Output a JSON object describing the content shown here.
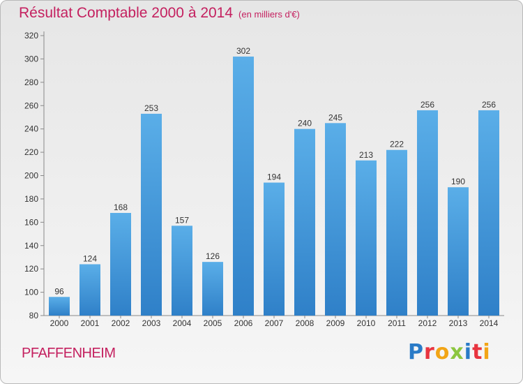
{
  "title": "Résultat Comptable 2000 à 2014",
  "unit": "(en milliers d'€)",
  "place": "PFAFFENHEIM",
  "logo": {
    "text": "Proxiti",
    "letters": [
      {
        "ch": "P",
        "color": "#2a7bc7"
      },
      {
        "ch": "r",
        "color": "#e8343f"
      },
      {
        "ch": "o",
        "color": "#f2a516"
      },
      {
        "ch": "x",
        "color": "#8cc63f"
      },
      {
        "ch": "i",
        "color": "#2a7bc7"
      },
      {
        "ch": "t",
        "color": "#e8343f"
      },
      {
        "ch": "i",
        "color": "#f2a516"
      }
    ]
  },
  "colors": {
    "accent": "#c4205f",
    "bar_top": "#5aaee8",
    "bar_bottom": "#2f80c8"
  },
  "chart_data": {
    "type": "bar",
    "categories": [
      "2000",
      "2001",
      "2002",
      "2003",
      "2004",
      "2005",
      "2006",
      "2007",
      "2008",
      "2009",
      "2010",
      "2011",
      "2012",
      "2013",
      "2014"
    ],
    "values": [
      96,
      124,
      168,
      253,
      157,
      126,
      302,
      194,
      240,
      245,
      213,
      222,
      256,
      190,
      256
    ],
    "ylim": [
      80,
      320
    ],
    "yticks": [
      80,
      100,
      120,
      140,
      160,
      180,
      200,
      220,
      240,
      260,
      280,
      300,
      320
    ],
    "grid": false,
    "data_labels": true
  }
}
